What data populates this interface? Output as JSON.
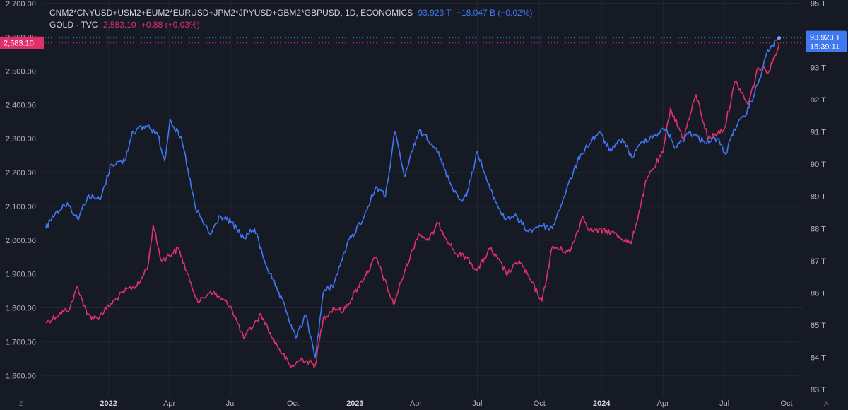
{
  "legend": {
    "m2_name": "CNM2*CNYUSD+USM2+EUM2*EURUSD+JPM2*JPYUSD+GBM2*GBPUSD, 1D, ECONOMICS",
    "m2_value": "93.923 T",
    "m2_change": "−18.047 B (−0.02%)",
    "gold_name": "GOLD · TVC",
    "gold_value": "2,583.10",
    "gold_change": "+0.88 (+0.03%)"
  },
  "badges": {
    "left_price": "2,583.10",
    "right_value": "93.923 T",
    "right_countdown": "15:39:11"
  },
  "corner_labels": {
    "left": "Z",
    "right": "A"
  },
  "colors": {
    "background": "#161a25",
    "gold": "#e0306a",
    "m2": "#3f78f0",
    "grid": "#232733"
  },
  "chart_data": {
    "type": "line",
    "x_type": "date",
    "x_ticks": [
      {
        "date": "2022-01-01",
        "label": "2022",
        "year": true
      },
      {
        "date": "2022-04-01",
        "label": "Apr"
      },
      {
        "date": "2022-07-01",
        "label": "Jul"
      },
      {
        "date": "2022-10-01",
        "label": "Oct"
      },
      {
        "date": "2023-01-01",
        "label": "2023",
        "year": true
      },
      {
        "date": "2023-04-01",
        "label": "Apr"
      },
      {
        "date": "2023-07-01",
        "label": "Jul"
      },
      {
        "date": "2023-10-01",
        "label": "Oct"
      },
      {
        "date": "2024-01-01",
        "label": "2024",
        "year": true
      },
      {
        "date": "2024-04-01",
        "label": "Apr"
      },
      {
        "date": "2024-07-01",
        "label": "Jul"
      },
      {
        "date": "2024-10-01",
        "label": "Oct"
      }
    ],
    "x_range": [
      "2021-09-25",
      "2024-10-25"
    ],
    "left_axis": {
      "ylim": [
        1540,
        2710
      ],
      "ticks": [
        "1,600.00",
        "1,700.00",
        "1,800.00",
        "1,900.00",
        "2,000.00",
        "2,100.00",
        "2,200.00",
        "2,300.00",
        "2,400.00",
        "2,500.00",
        "2,600.00",
        "2,700.00"
      ],
      "tick_values": [
        1600,
        1700,
        1800,
        1900,
        2000,
        2100,
        2200,
        2300,
        2400,
        2500,
        2600,
        2700
      ]
    },
    "right_axis": {
      "ylim": [
        82.8,
        95.1
      ],
      "ticks": [
        "83 T",
        "84 T",
        "85 T",
        "86 T",
        "87 T",
        "88 T",
        "89 T",
        "90 T",
        "91 T",
        "92 T",
        "93 T",
        "94 T",
        "95 T"
      ],
      "tick_values": [
        83,
        84,
        85,
        86,
        87,
        88,
        89,
        90,
        91,
        92,
        93,
        94,
        95
      ]
    },
    "grid": true,
    "series": [
      {
        "name": "GOLD · TVC",
        "axis": "left",
        "color": "#e0306a",
        "points": [
          [
            "2021-09-30",
            1757
          ],
          [
            "2021-10-20",
            1782
          ],
          [
            "2021-11-05",
            1800
          ],
          [
            "2021-11-16",
            1865
          ],
          [
            "2021-11-30",
            1780
          ],
          [
            "2021-12-15",
            1770
          ],
          [
            "2022-01-01",
            1805
          ],
          [
            "2022-01-25",
            1850
          ],
          [
            "2022-02-15",
            1870
          ],
          [
            "2022-03-01",
            1930
          ],
          [
            "2022-03-08",
            2045
          ],
          [
            "2022-03-20",
            1940
          ],
          [
            "2022-04-15",
            1975
          ],
          [
            "2022-05-01",
            1880
          ],
          [
            "2022-05-15",
            1815
          ],
          [
            "2022-06-01",
            1850
          ],
          [
            "2022-07-01",
            1805
          ],
          [
            "2022-07-20",
            1710
          ],
          [
            "2022-08-15",
            1780
          ],
          [
            "2022-09-01",
            1710
          ],
          [
            "2022-09-28",
            1625
          ],
          [
            "2022-10-15",
            1650
          ],
          [
            "2022-11-03",
            1630
          ],
          [
            "2022-11-15",
            1770
          ],
          [
            "2022-12-01",
            1800
          ],
          [
            "2022-12-15",
            1790
          ],
          [
            "2023-01-05",
            1860
          ],
          [
            "2023-02-01",
            1950
          ],
          [
            "2023-02-27",
            1810
          ],
          [
            "2023-03-15",
            1905
          ],
          [
            "2023-04-05",
            2020
          ],
          [
            "2023-04-20",
            2000
          ],
          [
            "2023-05-04",
            2050
          ],
          [
            "2023-05-30",
            1960
          ],
          [
            "2023-06-15",
            1950
          ],
          [
            "2023-07-01",
            1910
          ],
          [
            "2023-07-20",
            1975
          ],
          [
            "2023-08-15",
            1900
          ],
          [
            "2023-09-01",
            1940
          ],
          [
            "2023-10-05",
            1820
          ],
          [
            "2023-10-20",
            1980
          ],
          [
            "2023-11-15",
            1965
          ],
          [
            "2023-12-04",
            2070
          ],
          [
            "2023-12-15",
            2030
          ],
          [
            "2024-01-15",
            2025
          ],
          [
            "2024-02-14",
            1990
          ],
          [
            "2024-03-08",
            2180
          ],
          [
            "2024-04-01",
            2260
          ],
          [
            "2024-04-12",
            2390
          ],
          [
            "2024-05-01",
            2300
          ],
          [
            "2024-05-20",
            2430
          ],
          [
            "2024-06-07",
            2300
          ],
          [
            "2024-07-01",
            2330
          ],
          [
            "2024-07-17",
            2470
          ],
          [
            "2024-08-05",
            2400
          ],
          [
            "2024-08-20",
            2510
          ],
          [
            "2024-09-05",
            2500
          ],
          [
            "2024-09-20",
            2583.1
          ]
        ]
      },
      {
        "name": "CNM2*CNYUSD+USM2+EUM2*EURUSD+JPM2*JPYUSD+GBM2*GBPUSD, 1D, ECONOMICS",
        "axis": "right",
        "color": "#3f78f0",
        "points": [
          [
            "2021-09-30",
            88.0
          ],
          [
            "2021-10-10",
            88.4
          ],
          [
            "2021-11-01",
            88.8
          ],
          [
            "2021-11-16",
            88.3
          ],
          [
            "2021-12-01",
            89.0
          ],
          [
            "2021-12-20",
            88.9
          ],
          [
            "2022-01-05",
            90.0
          ],
          [
            "2022-01-25",
            90.1
          ],
          [
            "2022-02-05",
            91.0
          ],
          [
            "2022-02-28",
            91.2
          ],
          [
            "2022-03-15",
            90.9
          ],
          [
            "2022-03-25",
            90.1
          ],
          [
            "2022-04-02",
            91.4
          ],
          [
            "2022-04-20",
            90.7
          ],
          [
            "2022-05-10",
            88.6
          ],
          [
            "2022-06-01",
            87.8
          ],
          [
            "2022-06-15",
            88.4
          ],
          [
            "2022-07-01",
            88.2
          ],
          [
            "2022-07-20",
            87.7
          ],
          [
            "2022-08-05",
            88.0
          ],
          [
            "2022-08-20",
            87.0
          ],
          [
            "2022-09-05",
            86.2
          ],
          [
            "2022-09-20",
            85.5
          ],
          [
            "2022-10-05",
            84.6
          ],
          [
            "2022-10-20",
            85.3
          ],
          [
            "2022-11-03",
            84.0
          ],
          [
            "2022-11-15",
            86.0
          ],
          [
            "2022-12-01",
            86.3
          ],
          [
            "2022-12-20",
            87.5
          ],
          [
            "2023-01-15",
            88.4
          ],
          [
            "2023-02-01",
            89.3
          ],
          [
            "2023-02-15",
            89.0
          ],
          [
            "2023-03-01",
            91.0
          ],
          [
            "2023-03-15",
            89.6
          ],
          [
            "2023-04-05",
            91.0
          ],
          [
            "2023-04-15",
            90.9
          ],
          [
            "2023-05-01",
            90.5
          ],
          [
            "2023-05-20",
            89.5
          ],
          [
            "2023-06-05",
            88.9
          ],
          [
            "2023-06-15",
            89.0
          ],
          [
            "2023-07-01",
            90.4
          ],
          [
            "2023-07-20",
            89.2
          ],
          [
            "2023-08-10",
            88.3
          ],
          [
            "2023-08-25",
            88.4
          ],
          [
            "2023-09-15",
            87.9
          ],
          [
            "2023-10-01",
            88.1
          ],
          [
            "2023-10-20",
            88.0
          ],
          [
            "2023-11-10",
            89.2
          ],
          [
            "2023-12-01",
            90.3
          ],
          [
            "2023-12-28",
            91.0
          ],
          [
            "2024-01-15",
            90.4
          ],
          [
            "2024-02-01",
            90.8
          ],
          [
            "2024-02-15",
            90.2
          ],
          [
            "2024-03-01",
            90.7
          ],
          [
            "2024-03-20",
            90.9
          ],
          [
            "2024-04-05",
            91.1
          ],
          [
            "2024-04-20",
            90.5
          ],
          [
            "2024-05-10",
            91.0
          ],
          [
            "2024-06-01",
            90.7
          ],
          [
            "2024-06-20",
            90.8
          ],
          [
            "2024-07-03",
            90.3
          ],
          [
            "2024-07-15",
            91.1
          ],
          [
            "2024-08-01",
            91.5
          ],
          [
            "2024-08-20",
            92.5
          ],
          [
            "2024-09-01",
            93.4
          ],
          [
            "2024-09-10",
            93.7
          ],
          [
            "2024-09-20",
            93.923
          ]
        ]
      }
    ]
  }
}
